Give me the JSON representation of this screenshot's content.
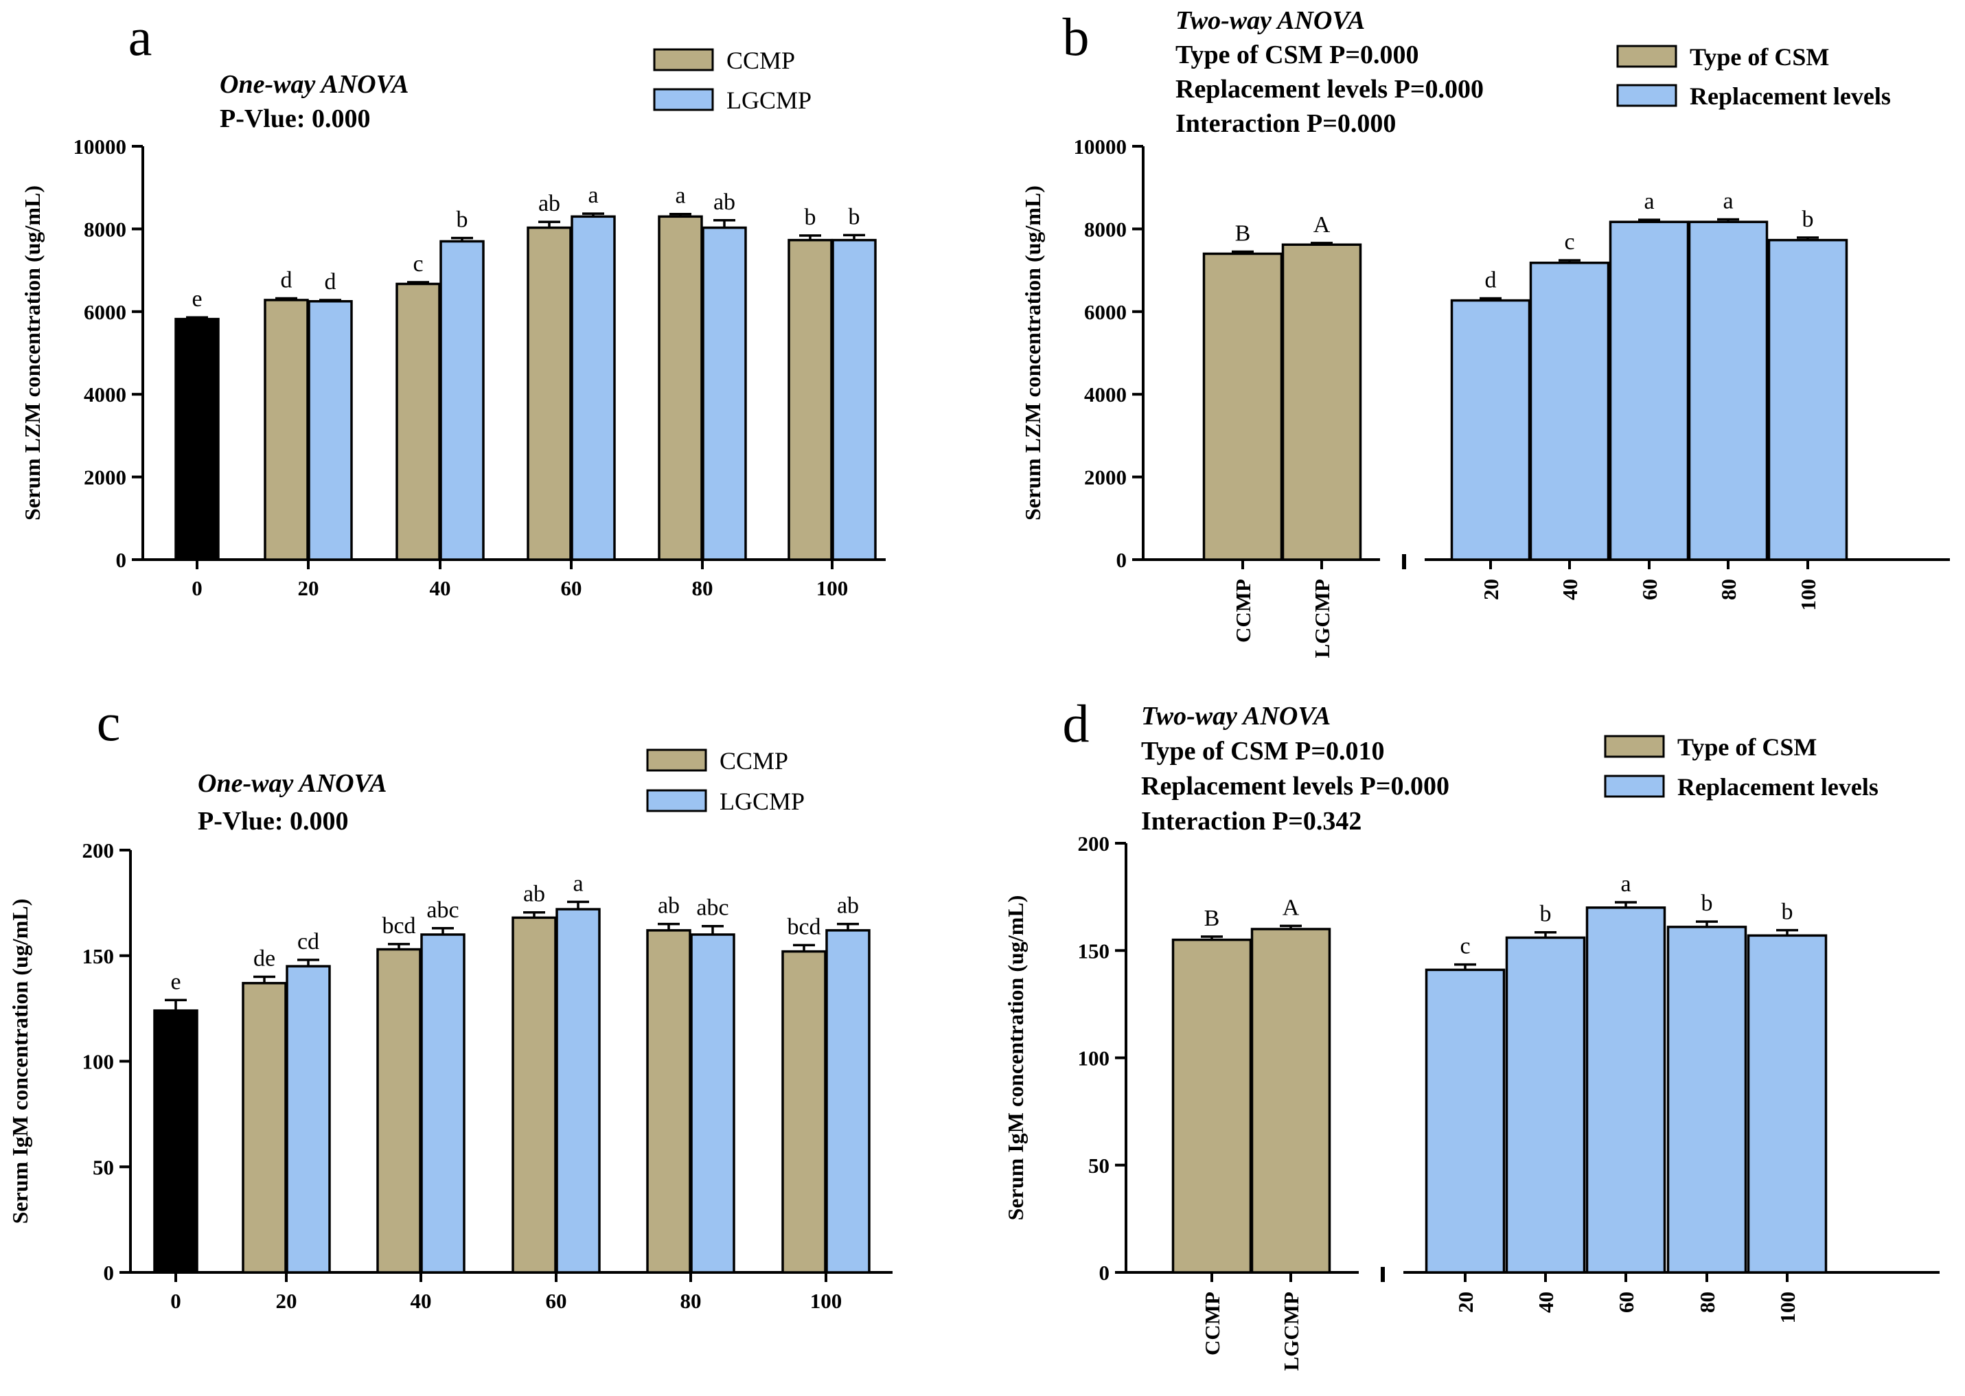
{
  "colors": {
    "ccmp": "#b9ad84",
    "lgcmp": "#9cc3f2",
    "control": "#000000",
    "axis": "#000000",
    "background": "#ffffff"
  },
  "chart_data": [
    {
      "id": "a",
      "panel_letter": "a",
      "type": "bar",
      "variant": "grouped",
      "stats_header": [
        "One-way ANOVA",
        "P-Vlue: 0.000"
      ],
      "legend": [
        "CCMP",
        "LGCMP"
      ],
      "ylabel": "Serum LZM concentration (ug/mL)",
      "ylim": [
        0,
        10000
      ],
      "yticks": [
        0,
        2000,
        4000,
        6000,
        8000,
        10000
      ],
      "categories": [
        "0",
        "20",
        "40",
        "60",
        "80",
        "100"
      ],
      "control": {
        "label": "0",
        "value": 5820,
        "error": 40,
        "letter": "e"
      },
      "series": [
        {
          "name": "CCMP",
          "values": [
            null,
            6280,
            6670,
            8030,
            8300,
            7730
          ],
          "errors": [
            null,
            40,
            40,
            140,
            60,
            110
          ],
          "letters": [
            null,
            "d",
            "c",
            "ab",
            "a",
            "b"
          ]
        },
        {
          "name": "LGCMP",
          "values": [
            null,
            6250,
            7700,
            8300,
            8030,
            7730
          ],
          "errors": [
            null,
            30,
            80,
            70,
            180,
            120
          ],
          "letters": [
            null,
            "d",
            "b",
            "a",
            "ab",
            "b"
          ]
        }
      ]
    },
    {
      "id": "b",
      "panel_letter": "b",
      "type": "bar",
      "variant": "two-way",
      "stats_header": [
        "Two-way ANOVA",
        "Type of CSM P=0.000",
        "Replacement levels P=0.000",
        "Interaction P=0.000"
      ],
      "legend": [
        "Type of CSM",
        "Replacement levels"
      ],
      "ylabel": "Serum LZM concentration (ug/mL)",
      "ylim": [
        0,
        10000
      ],
      "yticks": [
        0,
        2000,
        4000,
        6000,
        8000,
        10000
      ],
      "groups": [
        {
          "name": "Type of CSM",
          "categories": [
            "CCMP",
            "LGCMP"
          ],
          "values": [
            7400,
            7620
          ],
          "errors": [
            50,
            40
          ],
          "letters": [
            "B",
            "A"
          ]
        },
        {
          "name": "Replacement levels",
          "categories": [
            "20",
            "40",
            "60",
            "80",
            "100"
          ],
          "values": [
            6270,
            7180,
            8170,
            8170,
            7730
          ],
          "errors": [
            50,
            60,
            50,
            60,
            60
          ],
          "letters": [
            "d",
            "c",
            "a",
            "a",
            "b"
          ]
        }
      ]
    },
    {
      "id": "c",
      "panel_letter": "c",
      "type": "bar",
      "variant": "grouped",
      "stats_header": [
        "One-way ANOVA",
        "P-Vlue: 0.000"
      ],
      "legend": [
        "CCMP",
        "LGCMP"
      ],
      "ylabel": "Serum IgM concentration (ug/mL)",
      "ylim": [
        0,
        200
      ],
      "yticks": [
        0,
        50,
        100,
        150,
        200
      ],
      "categories": [
        "0",
        "20",
        "40",
        "60",
        "80",
        "100"
      ],
      "control": {
        "label": "0",
        "value": 124,
        "error": 5,
        "letter": "e"
      },
      "series": [
        {
          "name": "CCMP",
          "values": [
            null,
            137,
            153,
            168,
            162,
            152
          ],
          "errors": [
            null,
            3,
            2.5,
            2.5,
            3,
            3
          ],
          "letters": [
            null,
            "de",
            "bcd",
            "ab",
            "ab",
            "bcd"
          ]
        },
        {
          "name": "LGCMP",
          "values": [
            null,
            145,
            160,
            172,
            160,
            162
          ],
          "errors": [
            null,
            3,
            3,
            3.5,
            4,
            3
          ],
          "letters": [
            null,
            "cd",
            "abc",
            "a",
            "abc",
            "ab"
          ]
        }
      ]
    },
    {
      "id": "d",
      "panel_letter": "d",
      "type": "bar",
      "variant": "two-way",
      "stats_header": [
        "Two-way ANOVA",
        "Type of CSM P=0.010",
        "Replacement levels P=0.000",
        "Interaction P=0.342"
      ],
      "legend": [
        "Type of CSM",
        "Replacement levels"
      ],
      "ylabel": "Serum IgM concentration (ug/mL)",
      "ylim": [
        0,
        200
      ],
      "yticks": [
        0,
        50,
        100,
        150,
        200
      ],
      "groups": [
        {
          "name": "Type of CSM",
          "categories": [
            "CCMP",
            "LGCMP"
          ],
          "values": [
            155,
            160
          ],
          "errors": [
            1.5,
            1.5
          ],
          "letters": [
            "B",
            "A"
          ]
        },
        {
          "name": "Replacement levels",
          "categories": [
            "20",
            "40",
            "60",
            "80",
            "100"
          ],
          "values": [
            141,
            156,
            170,
            161,
            157
          ],
          "errors": [
            2.5,
            2.5,
            2.5,
            2.5,
            2.5
          ],
          "letters": [
            "c",
            "b",
            "a",
            "b",
            "b"
          ]
        }
      ]
    }
  ]
}
